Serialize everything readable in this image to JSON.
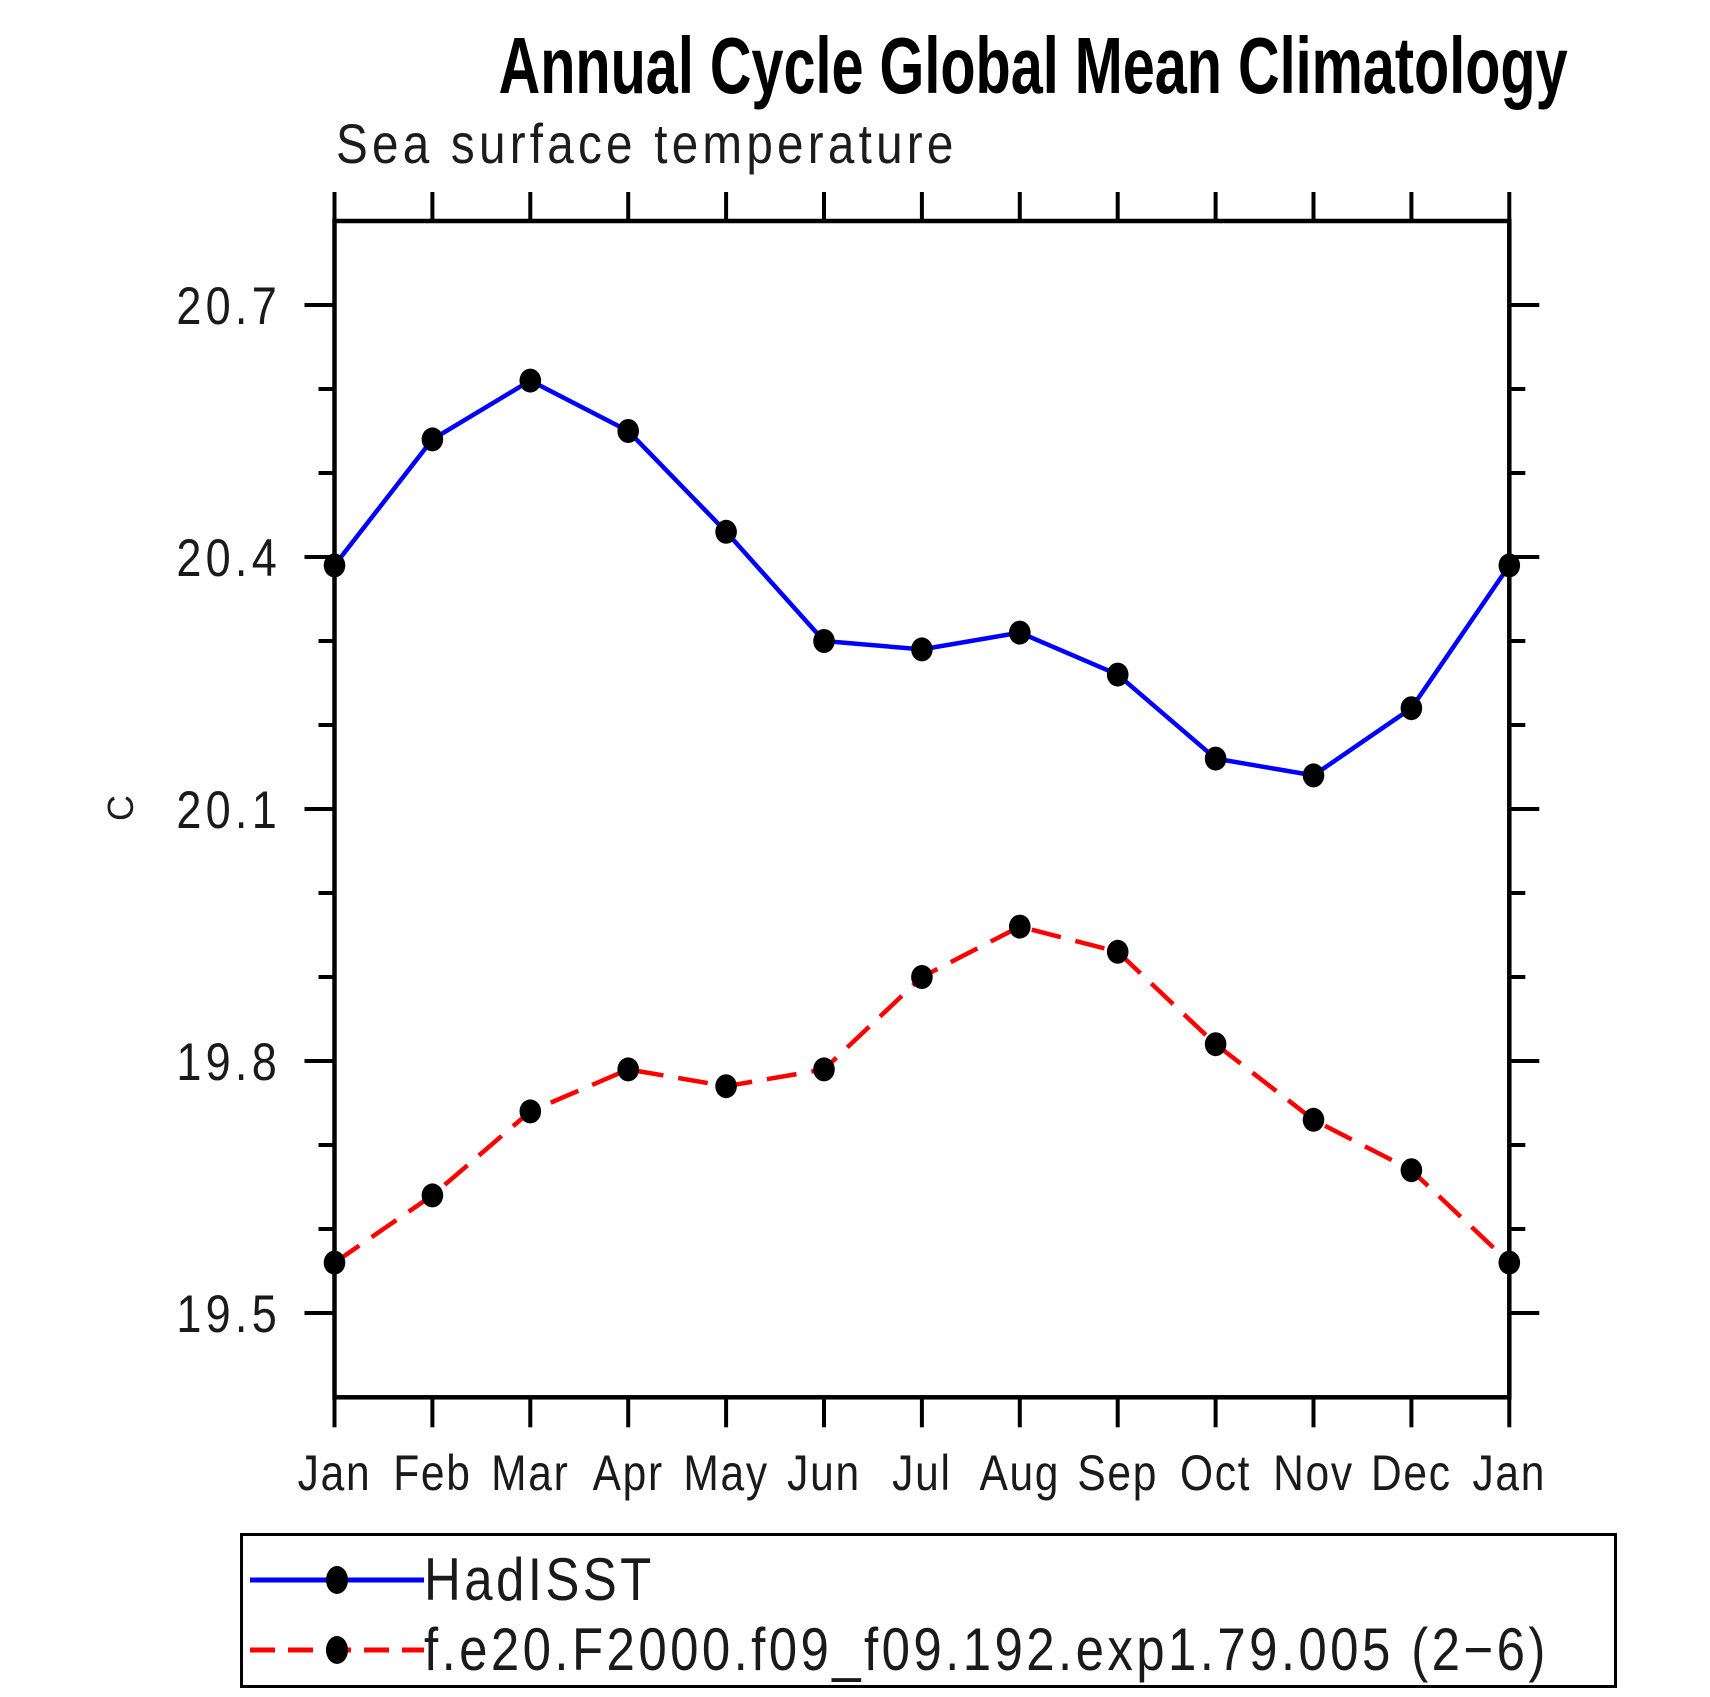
{
  "page": {
    "title": "Annual Cycle Global Mean Climatology",
    "subtitle": "Sea surface temperature"
  },
  "chart_data": {
    "type": "line",
    "title": "Annual Cycle Global Mean Climatology",
    "subtitle": "Sea surface temperature",
    "ylabel": "C",
    "xlabel": "",
    "categories": [
      "Jan",
      "Feb",
      "Mar",
      "Apr",
      "May",
      "Jun",
      "Jul",
      "Aug",
      "Sep",
      "Oct",
      "Nov",
      "Dec",
      "Jan"
    ],
    "series": [
      {
        "name": "HadISST",
        "color": "#0000ff",
        "line_style": "solid",
        "marker": "filled-circle",
        "marker_color": "#000000",
        "values": [
          20.39,
          20.54,
          20.61,
          20.55,
          20.43,
          20.3,
          20.29,
          20.31,
          20.26,
          20.16,
          20.14,
          20.22,
          20.39
        ]
      },
      {
        "name": "f.e20.F2000.f09_f09.192.exp1.79.005 (2−6)",
        "color": "#ff0000",
        "line_style": "dashed",
        "marker": "filled-circle",
        "marker_color": "#000000",
        "values": [
          19.56,
          19.64,
          19.74,
          19.79,
          19.77,
          19.79,
          19.9,
          19.96,
          19.93,
          19.82,
          19.73,
          19.67,
          19.56
        ]
      }
    ],
    "y_axis": {
      "major_ticks": [
        20.7,
        20.4,
        20.1,
        19.8,
        19.5
      ],
      "minor_tick_step": 0.1,
      "label": "C"
    },
    "ylim": [
      19.4,
      20.8
    ],
    "grid": false,
    "legend_position": "bottom"
  },
  "legend": {
    "entries": [
      {
        "label": "HadISST",
        "color": "#0000ff",
        "line_style": "solid",
        "marker": "filled-circle"
      },
      {
        "label": "f.e20.F2000.f09_f09.192.exp1.79.005 (2−6)",
        "color": "#ff0000",
        "line_style": "dashed",
        "marker": "filled-circle"
      }
    ]
  }
}
